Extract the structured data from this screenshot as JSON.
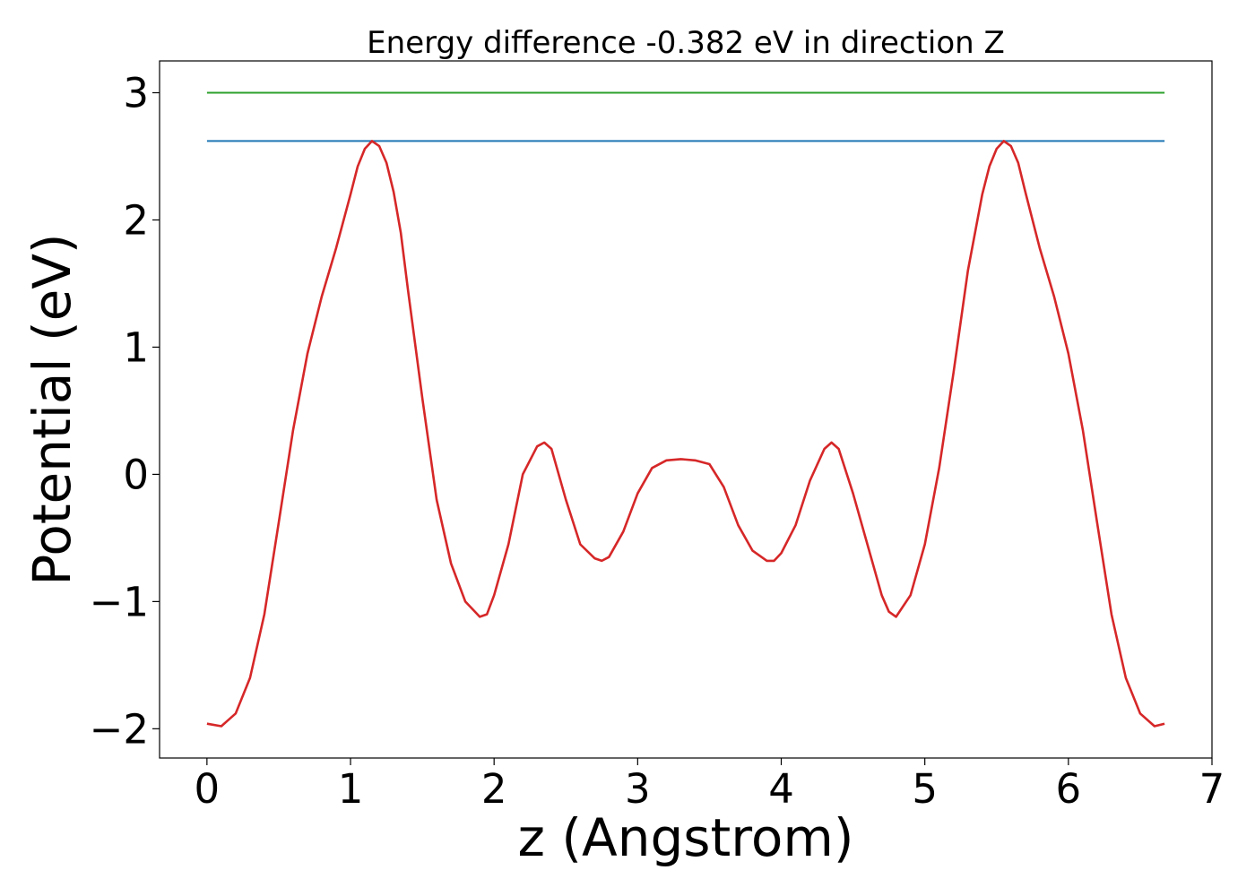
{
  "chart_data": {
    "type": "line",
    "title": "Energy difference -0.382 eV in direction Z",
    "xlabel": "z (Angstrom)",
    "ylabel": "Potential (eV)",
    "xlim": [
      -0.33,
      7
    ],
    "ylim": [
      -2.23,
      3.25
    ],
    "xticks": [
      0,
      1,
      2,
      3,
      4,
      5,
      6,
      7
    ],
    "yticks": [
      -2,
      -1,
      0,
      1,
      2,
      3
    ],
    "xtick_labels": [
      "0",
      "1",
      "2",
      "3",
      "4",
      "5",
      "6",
      "7"
    ],
    "ytick_labels": [
      "−2",
      "−1",
      "0",
      "1",
      "2",
      "3"
    ],
    "grid": false,
    "series": [
      {
        "color": "#2ca02c",
        "x": [
          0,
          6.67
        ],
        "y": [
          3.0,
          3.0
        ]
      },
      {
        "color": "#1f77b4",
        "x": [
          0,
          6.67
        ],
        "y": [
          2.62,
          2.62
        ]
      },
      {
        "color": "#d62728",
        "x": [
          0,
          0.1,
          0.2,
          0.3,
          0.4,
          0.5,
          0.6,
          0.7,
          0.8,
          0.9,
          1.0,
          1.05,
          1.1,
          1.15,
          1.2,
          1.25,
          1.3,
          1.35,
          1.4,
          1.5,
          1.6,
          1.7,
          1.8,
          1.9,
          1.95,
          2.0,
          2.1,
          2.2,
          2.3,
          2.35,
          2.4,
          2.5,
          2.6,
          2.7,
          2.75,
          2.8,
          2.9,
          3.0,
          3.1,
          3.2,
          3.3,
          3.4,
          3.5,
          3.6,
          3.7,
          3.8,
          3.9,
          3.95,
          4.0,
          4.1,
          4.2,
          4.3,
          4.35,
          4.4,
          4.5,
          4.6,
          4.7,
          4.75,
          4.8,
          4.9,
          5.0,
          5.1,
          5.2,
          5.3,
          5.4,
          5.45,
          5.5,
          5.55,
          5.6,
          5.65,
          5.7,
          5.8,
          5.9,
          6.0,
          6.1,
          6.2,
          6.3,
          6.4,
          6.5,
          6.6,
          6.67
        ],
        "y": [
          -1.96,
          -1.98,
          -1.88,
          -1.6,
          -1.1,
          -0.38,
          0.35,
          0.95,
          1.4,
          1.78,
          2.2,
          2.42,
          2.56,
          2.62,
          2.58,
          2.45,
          2.22,
          1.9,
          1.45,
          0.6,
          -0.2,
          -0.7,
          -1.0,
          -1.12,
          -1.1,
          -0.95,
          -0.55,
          0.0,
          0.22,
          0.25,
          0.2,
          -0.2,
          -0.55,
          -0.66,
          -0.68,
          -0.65,
          -0.45,
          -0.15,
          0.05,
          0.11,
          0.12,
          0.11,
          0.08,
          -0.1,
          -0.4,
          -0.6,
          -0.68,
          -0.68,
          -0.62,
          -0.4,
          -0.05,
          0.2,
          0.25,
          0.2,
          -0.15,
          -0.55,
          -0.95,
          -1.08,
          -1.12,
          -0.95,
          -0.55,
          0.05,
          0.8,
          1.6,
          2.2,
          2.42,
          2.56,
          2.62,
          2.58,
          2.45,
          2.22,
          1.78,
          1.4,
          0.95,
          0.35,
          -0.38,
          -1.1,
          -1.6,
          -1.88,
          -1.98,
          -1.96
        ]
      }
    ]
  }
}
